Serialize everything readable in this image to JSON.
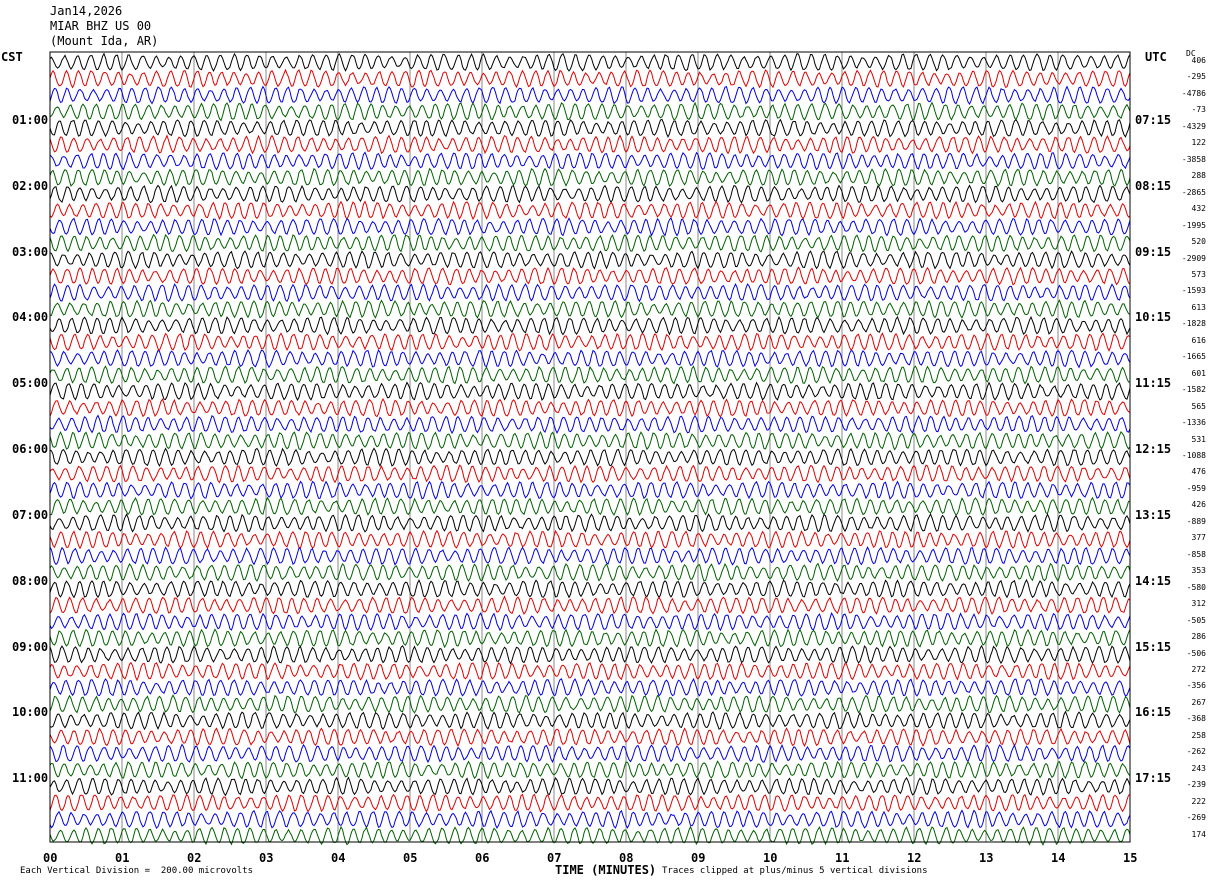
{
  "header": {
    "date": "Jan14,2026",
    "station": "MIAR BHZ US 00",
    "location": "(Mount Ida, AR)"
  },
  "left_tz": "CST",
  "right_tz": "UTC",
  "dc_label": "DC",
  "footer": {
    "division": "Each Vertical Division =  200.00 microvolts",
    "xlabel": "TIME (MINUTES)",
    "clip_note": "Traces clipped at plus/minus 5 vertical divisions"
  },
  "chart_data": {
    "type": "line",
    "title": "",
    "xlabel": "TIME (MINUTES)",
    "x_ticks": [
      "00",
      "01",
      "02",
      "03",
      "04",
      "05",
      "06",
      "07",
      "08",
      "09",
      "10",
      "11",
      "12",
      "13",
      "14",
      "15"
    ],
    "xlim": [
      0,
      15
    ],
    "left_hour_labels": [
      "01:00",
      "02:00",
      "03:00",
      "04:00",
      "05:00",
      "06:00",
      "07:00",
      "08:00",
      "09:00",
      "10:00",
      "11:00"
    ],
    "right_hour_labels": [
      "07:15",
      "08:15",
      "09:15",
      "10:15",
      "11:15",
      "12:15",
      "13:15",
      "14:15",
      "15:15",
      "16:15",
      "17:15"
    ],
    "trace_colors": [
      "#000000",
      "#e00000",
      "#0000e0",
      "#006000"
    ],
    "grid": true,
    "dc_offsets": [
      "406",
      "-295",
      "-4786",
      "-73",
      "-4329",
      "122",
      "-3858",
      "288",
      "-2865",
      "432",
      "-1995",
      "520",
      "-2909",
      "573",
      "-1593",
      "613",
      "-1828",
      "616",
      "-1665",
      "601",
      "-1582",
      "565",
      "-1336",
      "531",
      "-1088",
      "476",
      "-959",
      "426",
      "-889",
      "377",
      "-858",
      "353",
      "-580",
      "312",
      "-505",
      "286",
      "-506",
      "272",
      "-356",
      "267",
      "-368",
      "258",
      "-262",
      "243",
      "-239",
      "222",
      "-269",
      "174"
    ]
  }
}
